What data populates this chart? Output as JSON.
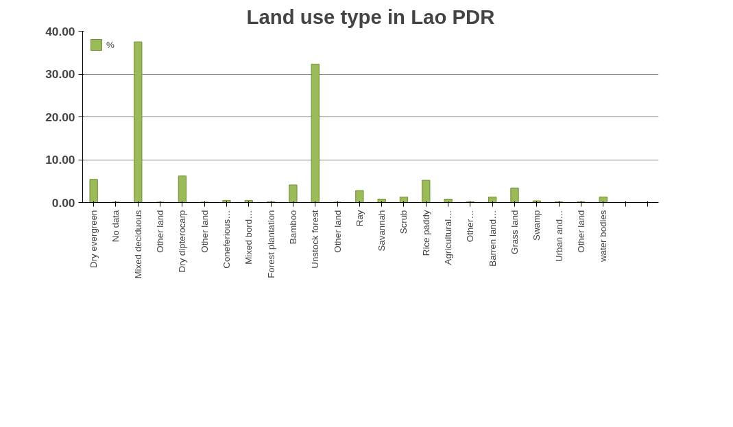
{
  "chart_data": {
    "type": "bar",
    "title": "Land use type in Lao PDR",
    "categories": [
      "Dry evergreen",
      "No data",
      "Mixed deciduous",
      "Other land",
      "Dry dipterocarp",
      "Other land",
      "Coneferious…",
      "Mixed bord…",
      "Forest plantation",
      "Bamboo",
      "Unstock forest",
      "Other land",
      "Ray",
      "Savannah",
      "Scrub",
      "Rice paddy",
      "Agricultural…",
      "Other…",
      "Barren land…",
      "Grass land",
      "Swamp",
      "Urban and…",
      "Other land",
      "water bodies",
      null,
      null
    ],
    "series": [
      {
        "name": "%",
        "color": "#9bbb59",
        "values": [
          5.4,
          0.1,
          37.5,
          0.1,
          6.2,
          0.1,
          0.5,
          0.5,
          0.2,
          4.1,
          32.3,
          0.1,
          2.8,
          0.8,
          1.3,
          5.2,
          0.8,
          0.2,
          1.3,
          3.4,
          0.4,
          0.2,
          0.2,
          1.3,
          null,
          null
        ]
      }
    ],
    "ylim": [
      0,
      40
    ],
    "yticks": [
      {
        "value": 0,
        "label": "0.00"
      },
      {
        "value": 10,
        "label": "10.00"
      },
      {
        "value": 20,
        "label": "20.00"
      },
      {
        "value": 30,
        "label": "30.00"
      },
      {
        "value": 40,
        "label": "40.00"
      }
    ],
    "grid": "y",
    "legend": "top left"
  }
}
